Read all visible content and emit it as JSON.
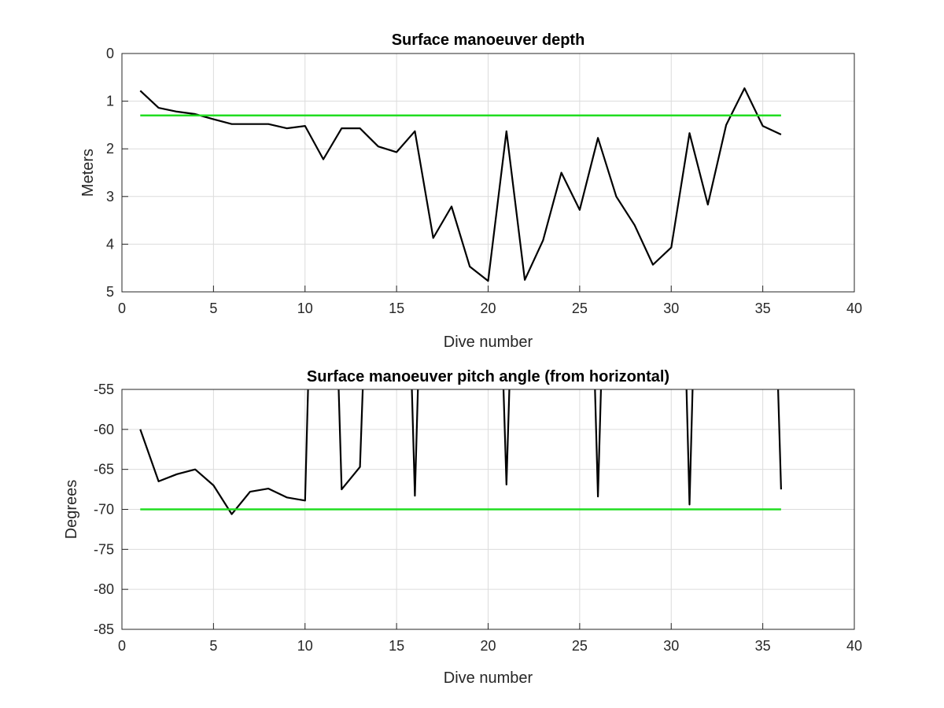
{
  "chart_data": [
    {
      "type": "line",
      "title": "Surface manoeuver depth",
      "xlabel": "Dive number",
      "ylabel": "Meters",
      "xlim": [
        0,
        40
      ],
      "ylim": [
        0,
        5
      ],
      "y_reversed": true,
      "grid": true,
      "xticks": [
        "0",
        "5",
        "10",
        "15",
        "20",
        "25",
        "30",
        "35",
        "40"
      ],
      "yticks": [
        "0",
        "1",
        "2",
        "3",
        "4",
        "5"
      ],
      "series": [
        {
          "color": "#000000",
          "x": [
            1,
            2,
            3,
            4,
            5,
            6,
            7,
            8,
            9,
            10,
            11,
            12,
            13,
            14,
            15,
            16,
            17,
            18,
            19,
            20,
            21,
            22,
            23,
            24,
            25,
            26,
            27,
            28,
            29,
            30,
            31,
            32,
            33,
            34,
            35,
            36
          ],
          "values": [
            0.78,
            1.14,
            1.22,
            1.27,
            1.38,
            1.48,
            1.48,
            1.48,
            1.57,
            1.52,
            2.22,
            1.57,
            1.57,
            1.95,
            2.07,
            1.63,
            3.87,
            3.21,
            4.47,
            4.77,
            1.63,
            4.75,
            3.92,
            2.5,
            3.28,
            1.77,
            3.0,
            3.6,
            4.43,
            4.07,
            1.67,
            3.17,
            1.5,
            0.73,
            1.52,
            1.7
          ]
        },
        {
          "color": "#22dd22",
          "x": [
            1,
            36
          ],
          "values": [
            1.3,
            1.3
          ]
        }
      ]
    },
    {
      "type": "line",
      "title": "Surface manoeuver pitch angle (from horizontal)",
      "xlabel": "Dive number",
      "ylabel": "Degrees",
      "xlim": [
        0,
        40
      ],
      "ylim": [
        -85,
        -55
      ],
      "y_reversed": false,
      "grid": true,
      "xticks": [
        "0",
        "5",
        "10",
        "15",
        "20",
        "25",
        "30",
        "35",
        "40"
      ],
      "yticks": [
        "-55",
        "-60",
        "-65",
        "-70",
        "-75",
        "-80",
        "-85"
      ],
      "series": [
        {
          "color": "#000000",
          "x": [
            1,
            2,
            3,
            4,
            5,
            6,
            7,
            8,
            9,
            10,
            10.2,
            11.8,
            12,
            13,
            13.2,
            15.8,
            16,
            16.2,
            20.8,
            21,
            21.2,
            25.8,
            26,
            26.2,
            30.8,
            31,
            31.2,
            35.8,
            36
          ],
          "values": [
            -60,
            -66.5,
            -65.6,
            -65,
            -67,
            -70.6,
            -67.8,
            -67.4,
            -68.5,
            -68.9,
            -52,
            -52,
            -67.5,
            -64.7,
            -52,
            -52,
            -68.3,
            -52,
            -52,
            -66.9,
            -52,
            -52,
            -68.4,
            -52,
            -52,
            -69.4,
            -52,
            -52,
            -67.5
          ]
        },
        {
          "color": "#22dd22",
          "x": [
            1,
            36
          ],
          "values": [
            -70,
            -70
          ]
        }
      ]
    }
  ]
}
